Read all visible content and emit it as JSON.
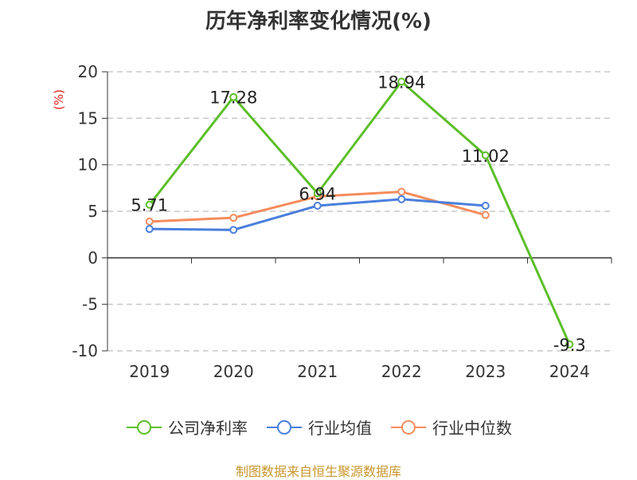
{
  "title": "历年净利率变化情况(%)",
  "source": "制图数据来自恒生聚源数据库",
  "chart_data": {
    "type": "line",
    "title": "历年净利率变化情况(%)",
    "ylabel": "(%)",
    "xlabel": "",
    "categories": [
      "2019",
      "2020",
      "2021",
      "2022",
      "2023",
      "2024"
    ],
    "ylim": [
      -10,
      20
    ],
    "yticks": [
      -10,
      -5,
      0,
      5,
      10,
      15,
      20
    ],
    "grid": true,
    "legend_position": "bottom",
    "series": [
      {
        "name": "公司净利率",
        "color": "#5cbf29",
        "values": [
          5.71,
          17.28,
          6.94,
          18.94,
          11.02,
          -9.3
        ],
        "labels": [
          "5.71",
          "17.28",
          "6.94",
          "18.94",
          "11.02",
          "-9.3"
        ]
      },
      {
        "name": "行业均值",
        "color": "#4a7fdc",
        "values": [
          3.1,
          3.0,
          5.6,
          6.3,
          5.6,
          null
        ]
      },
      {
        "name": "行业中位数",
        "color": "#f58c5c",
        "values": [
          3.9,
          4.3,
          6.6,
          7.1,
          4.6,
          null
        ]
      }
    ]
  }
}
